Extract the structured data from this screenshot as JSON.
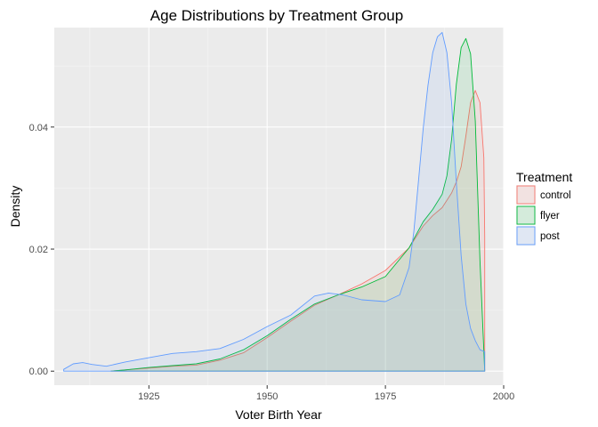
{
  "chart_data": {
    "type": "area",
    "title": "Age Distributions by Treatment Group",
    "xlabel": "Voter Birth Year",
    "ylabel": "Density",
    "xlim": [
      1905,
      2000
    ],
    "ylim": [
      -0.0023,
      0.0563
    ],
    "x_ticks": [
      1925,
      1950,
      1975,
      2000
    ],
    "x_tick_labels": [
      "1925",
      "1950",
      "1975",
      "2000"
    ],
    "y_ticks": [
      0.0,
      0.02,
      0.04
    ],
    "y_tick_labels": [
      "0.00",
      "0.02",
      "0.04"
    ],
    "grid": true,
    "legend": {
      "title": "Treatment",
      "position": "right"
    },
    "series": [
      {
        "name": "control",
        "color": "#F8766D",
        "fill": "#F8766D",
        "x": [
          1917,
          1920,
          1925,
          1930,
          1935,
          1940,
          1945,
          1950,
          1955,
          1960,
          1965,
          1970,
          1975,
          1980,
          1983,
          1985,
          1987,
          1989,
          1990,
          1991,
          1992,
          1993,
          1994,
          1995,
          1995.8,
          1996
        ],
        "y": [
          0.0,
          0.0002,
          0.0005,
          0.0008,
          0.001,
          0.0018,
          0.003,
          0.0055,
          0.0082,
          0.0108,
          0.0125,
          0.0143,
          0.0165,
          0.0202,
          0.0238,
          0.0255,
          0.0268,
          0.0292,
          0.031,
          0.0335,
          0.0385,
          0.044,
          0.046,
          0.044,
          0.035,
          0.022
        ]
      },
      {
        "name": "flyer",
        "color": "#00BA38",
        "fill": "#00BA38",
        "x": [
          1917,
          1920,
          1925,
          1930,
          1935,
          1940,
          1945,
          1950,
          1955,
          1960,
          1965,
          1970,
          1975,
          1980,
          1983,
          1985,
          1987,
          1988,
          1989,
          1990,
          1991,
          1992,
          1993,
          1994,
          1995,
          1996
        ],
        "y": [
          0.0,
          0.0002,
          0.0006,
          0.0009,
          0.0012,
          0.002,
          0.0035,
          0.0058,
          0.0085,
          0.011,
          0.0125,
          0.0138,
          0.0155,
          0.0202,
          0.0245,
          0.0265,
          0.029,
          0.032,
          0.038,
          0.047,
          0.053,
          0.0545,
          0.052,
          0.041,
          0.018,
          0.0
        ]
      },
      {
        "name": "post",
        "color": "#619CFF",
        "fill": "#619CFF",
        "x": [
          1907,
          1909,
          1911,
          1913,
          1916,
          1920,
          1925,
          1930,
          1935,
          1940,
          1945,
          1950,
          1955,
          1960,
          1963,
          1966,
          1970,
          1975,
          1978,
          1980,
          1981,
          1982,
          1983,
          1984,
          1985,
          1986,
          1987,
          1988,
          1989,
          1990,
          1991,
          1992,
          1993,
          1994,
          1995,
          1996
        ],
        "y": [
          0.0003,
          0.0012,
          0.0014,
          0.0011,
          0.0008,
          0.0015,
          0.0022,
          0.0029,
          0.0032,
          0.0037,
          0.0052,
          0.0073,
          0.0092,
          0.0123,
          0.0128,
          0.0125,
          0.0117,
          0.0114,
          0.0125,
          0.017,
          0.0228,
          0.0312,
          0.0398,
          0.0468,
          0.0522,
          0.0548,
          0.0555,
          0.0522,
          0.044,
          0.031,
          0.019,
          0.011,
          0.007,
          0.005,
          0.0035,
          0.0032
        ]
      }
    ]
  }
}
